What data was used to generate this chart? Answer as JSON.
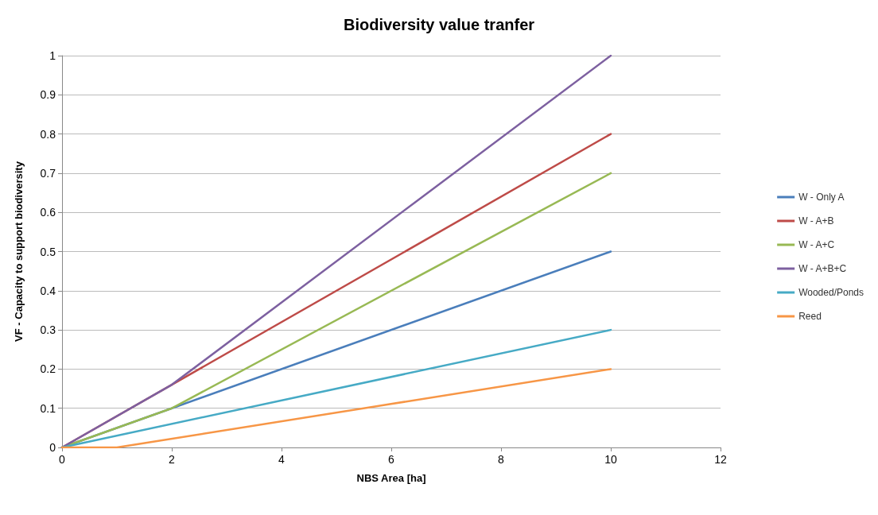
{
  "chart_data": {
    "type": "line",
    "title": "Biodiversity value tranfer",
    "xlabel": "NBS Area [ha]",
    "ylabel": "VF - Capacity to support biodiversity",
    "series": [
      {
        "name": "W - Only A",
        "color": "#4a7ebb",
        "x": [
          0,
          2,
          10
        ],
        "values": [
          0,
          0.1,
          0.5
        ]
      },
      {
        "name": "W - A+B",
        "color": "#be4b48",
        "x": [
          0,
          2,
          10
        ],
        "values": [
          0,
          0.16,
          0.8
        ]
      },
      {
        "name": "W - A+C",
        "color": "#98b954",
        "x": [
          0,
          2,
          10
        ],
        "values": [
          0,
          0.1,
          0.7
        ]
      },
      {
        "name": "W - A+B+C",
        "color": "#7d60a0",
        "x": [
          0,
          2,
          10
        ],
        "values": [
          0,
          0.16,
          1
        ]
      },
      {
        "name": "Wooded/Ponds",
        "color": "#46aac5",
        "x": [
          0,
          10
        ],
        "values": [
          0,
          0.3
        ]
      },
      {
        "name": "Reed",
        "color": "#f79646",
        "x": [
          0,
          1,
          10
        ],
        "values": [
          0,
          0,
          0.2
        ]
      }
    ],
    "xlim": [
      0,
      12
    ],
    "xticks": [
      0,
      2,
      4,
      6,
      8,
      10,
      12
    ],
    "ylim": [
      0,
      1
    ],
    "yticks": [
      0,
      0.1,
      0.2,
      0.3,
      0.4,
      0.5,
      0.6,
      0.7,
      0.8,
      0.9,
      1
    ],
    "grid": "y",
    "legend": "right",
    "marker": "none",
    "line_style": "solid"
  }
}
